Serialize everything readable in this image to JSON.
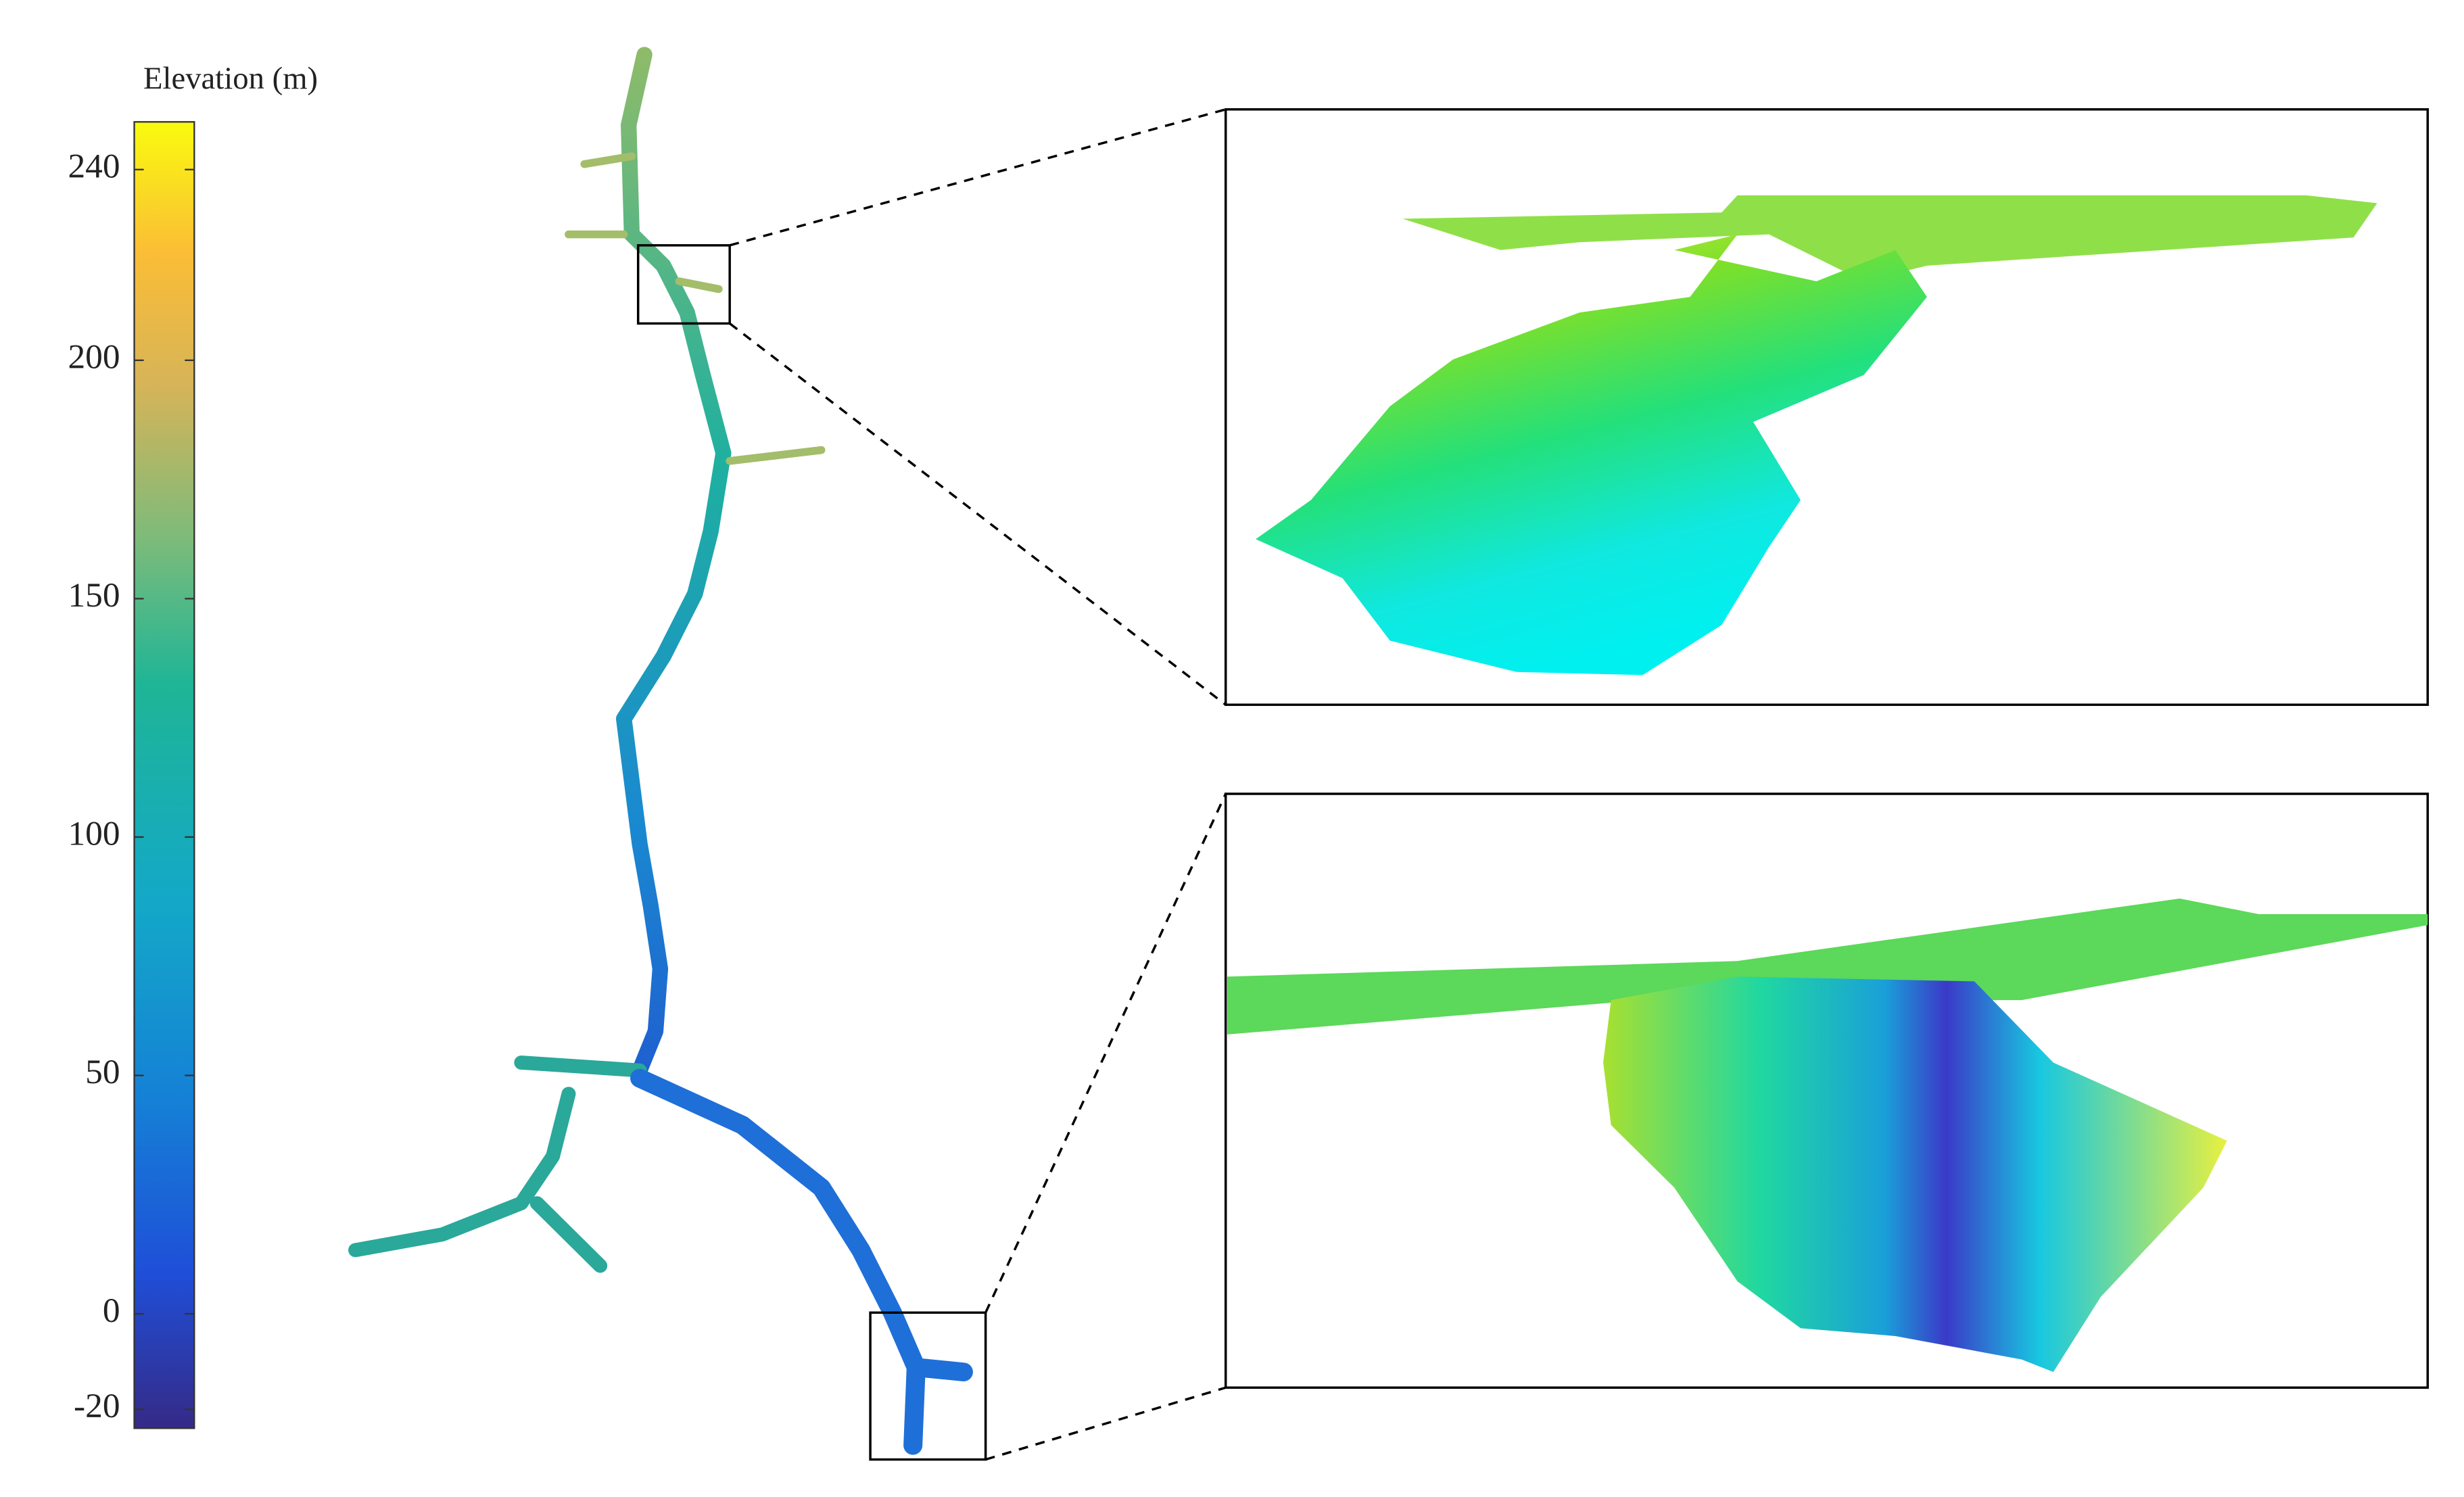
{
  "colorbar": {
    "label": "Elevation (m)",
    "lim": [
      -24,
      250
    ],
    "ticks": [
      240,
      200,
      150,
      100,
      50,
      0,
      -20
    ]
  }
}
